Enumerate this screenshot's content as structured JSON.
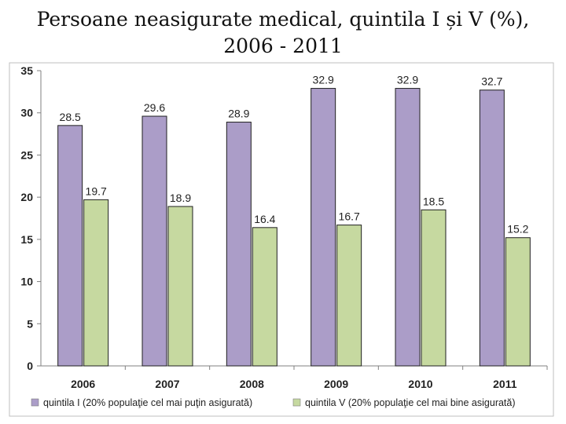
{
  "title": {
    "line1": "Persoane neasigurate medical, quintila I și V (%),",
    "line2": "2006 - 2011"
  },
  "colors": {
    "series_1": "#ab9dc8",
    "series_2": "#c6d9a0",
    "plot_bg": "#ffffff",
    "frame": "#bfbfbf"
  },
  "chart_data": {
    "type": "bar",
    "categories": [
      "2006",
      "2007",
      "2008",
      "2009",
      "2010",
      "2011"
    ],
    "series": [
      {
        "name": "quintila I (20% populaţie cel mai puţin asigurată)",
        "values": [
          28.5,
          29.6,
          28.9,
          32.9,
          32.9,
          32.7
        ]
      },
      {
        "name": "quintila V (20% populaţie cel mai bine asigurată)",
        "values": [
          19.7,
          18.9,
          16.4,
          16.7,
          18.5,
          15.2
        ]
      }
    ],
    "value_labels": [
      [
        "28.5",
        "29.6",
        "28.9",
        "32.9",
        "32.9",
        "32.7"
      ],
      [
        "19.7",
        "18.9",
        "16.4",
        "16.7",
        "18.5",
        "15.2"
      ]
    ],
    "yticks": [
      "0",
      "5",
      "10",
      "15",
      "20",
      "25",
      "30",
      "35"
    ],
    "ylim": [
      0,
      35
    ],
    "xlabel": "",
    "ylabel": "",
    "grid": false,
    "legend": "bottom"
  }
}
